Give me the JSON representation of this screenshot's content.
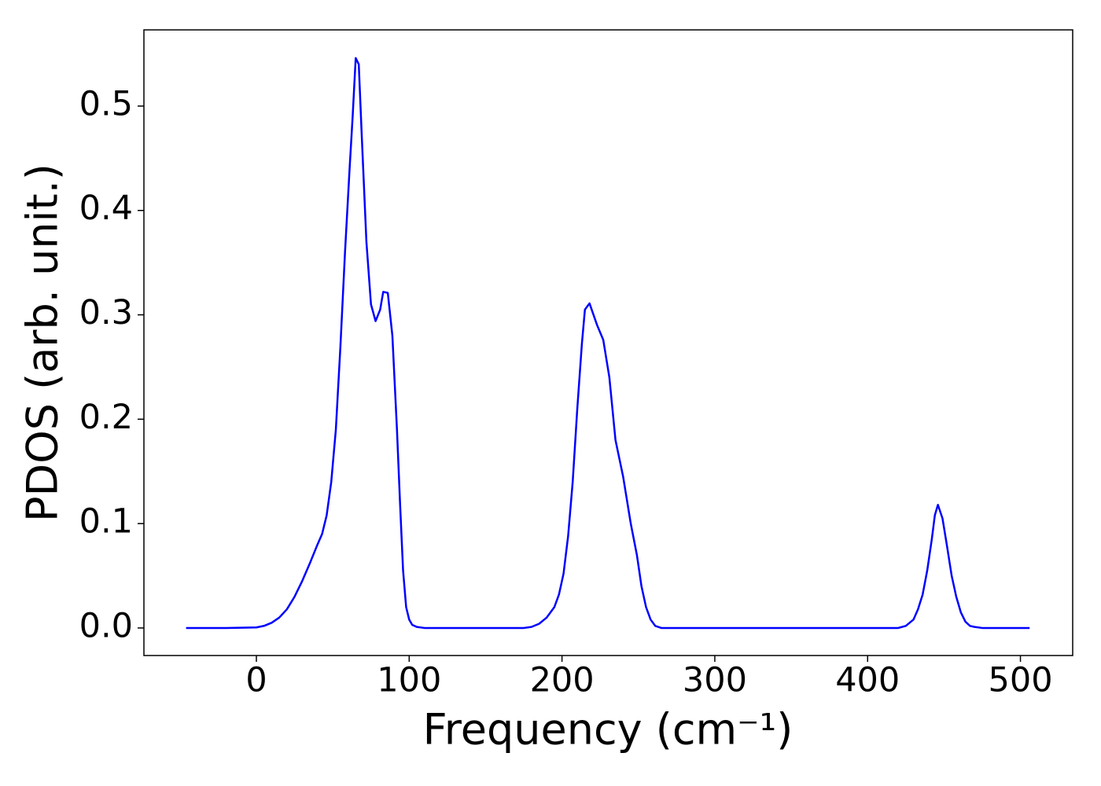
{
  "chart_data": {
    "type": "line",
    "xlabel": "Frequency (cm⁻¹)",
    "ylabel": "PDOS (arb. unit.)",
    "x": [
      -46,
      -20,
      0,
      5,
      10,
      15,
      20,
      25,
      30,
      35,
      40,
      43,
      46,
      49,
      52,
      55,
      58,
      61,
      63,
      65,
      67,
      69,
      72,
      75,
      78,
      81,
      83,
      86,
      89,
      92,
      94,
      96,
      98,
      100,
      102,
      105,
      110,
      175,
      180,
      185,
      190,
      195,
      198,
      201,
      204,
      207,
      210,
      213,
      215,
      218,
      223,
      227,
      231,
      235,
      240,
      245,
      249,
      252,
      255,
      258,
      261,
      265,
      420,
      425,
      430,
      433,
      436,
      439,
      442,
      444,
      446,
      449,
      452,
      455,
      458,
      461,
      464,
      467,
      470,
      475,
      506
    ],
    "series": [
      {
        "color": "#0000ff",
        "values": [
          0,
          0,
          0.0005,
          0.002,
          0.005,
          0.01,
          0.018,
          0.03,
          0.045,
          0.062,
          0.08,
          0.09,
          0.108,
          0.14,
          0.19,
          0.27,
          0.36,
          0.44,
          0.49,
          0.546,
          0.54,
          0.47,
          0.37,
          0.31,
          0.294,
          0.305,
          0.322,
          0.321,
          0.28,
          0.19,
          0.12,
          0.055,
          0.02,
          0.008,
          0.003,
          0.001,
          0,
          0,
          0.001,
          0.004,
          0.01,
          0.02,
          0.032,
          0.052,
          0.088,
          0.14,
          0.21,
          0.272,
          0.305,
          0.311,
          0.29,
          0.276,
          0.24,
          0.18,
          0.145,
          0.1,
          0.07,
          0.04,
          0.02,
          0.008,
          0.002,
          0,
          0,
          0.002,
          0.008,
          0.018,
          0.032,
          0.055,
          0.085,
          0.108,
          0.118,
          0.105,
          0.078,
          0.05,
          0.03,
          0.015,
          0.006,
          0.002,
          0.001,
          0,
          0
        ]
      }
    ],
    "xlim": [
      -73.6,
      534.2
    ],
    "ylim": [
      -0.0264,
      0.573
    ],
    "xticks": [
      0,
      100,
      200,
      300,
      400,
      500
    ],
    "yticks": [
      {
        "value": 0,
        "label": "0.0"
      },
      0.1,
      0.2,
      0.3,
      0.4,
      0.5
    ]
  }
}
